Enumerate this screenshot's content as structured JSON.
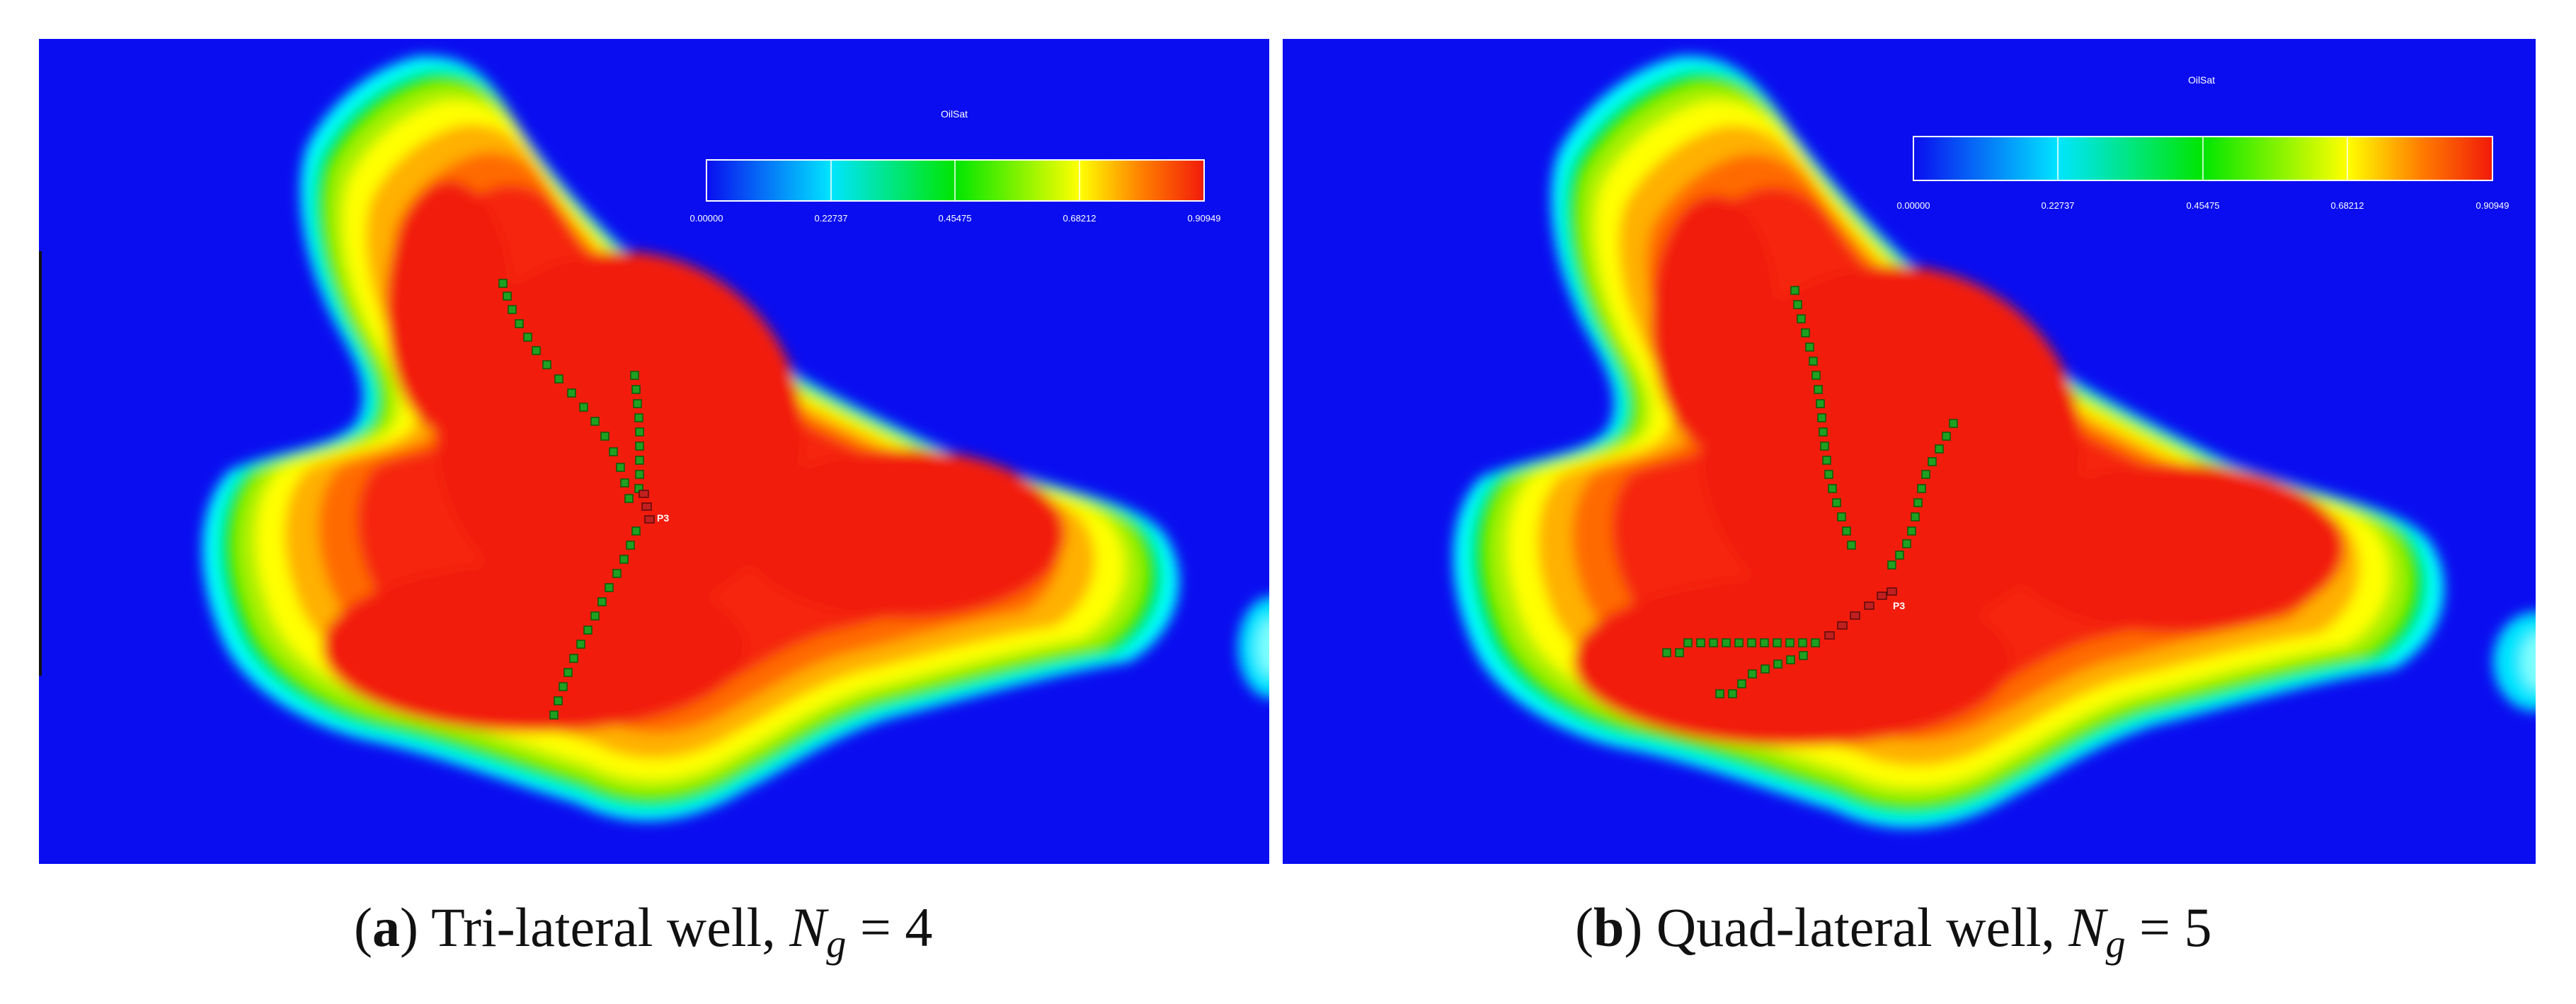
{
  "colorbar": {
    "title": "OilSat",
    "ticks": [
      "0.00000",
      "0.22737",
      "0.45475",
      "0.68212",
      "0.90949"
    ],
    "colors": [
      "#0a0df0",
      "#00e5ff",
      "#00e600",
      "#ffff00",
      "#ff7f00",
      "#f21a0a"
    ]
  },
  "colors": {
    "background_water": "#0a0df0",
    "well_segment": "#20a020",
    "well_heel_segment": "#c02020"
  },
  "panels": [
    {
      "label": "a",
      "title": "Tri-lateral well, ",
      "param_symbol": "N",
      "param_subscript": "g",
      "param_value": " = 4",
      "well_name": "P3",
      "lateral_count": 3
    },
    {
      "label": "b",
      "title": "Quad-lateral well, ",
      "param_symbol": "N",
      "param_subscript": "g",
      "param_value": " = 5",
      "well_name": "P3",
      "lateral_count": 4
    }
  ]
}
